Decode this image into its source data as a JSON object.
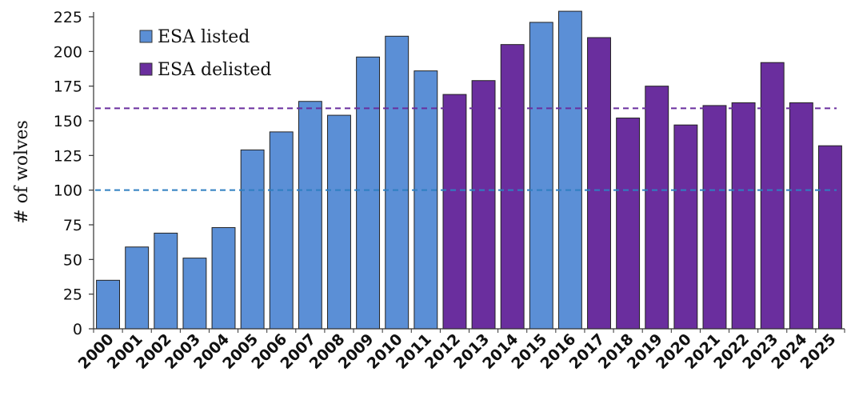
{
  "chart_data": {
    "type": "bar",
    "ylabel": "# of wolves",
    "ylim": [
      0,
      225
    ],
    "yticks": [
      0,
      25,
      50,
      75,
      100,
      125,
      150,
      175,
      200,
      225
    ],
    "categories": [
      "2000",
      "2001",
      "2002",
      "2003",
      "2004",
      "2005",
      "2006",
      "2007",
      "2008",
      "2009",
      "2010",
      "2011",
      "2012",
      "2013",
      "2014",
      "2015",
      "2016",
      "2017",
      "2018",
      "2019",
      "2020",
      "2021",
      "2022",
      "2023",
      "2024",
      "2025"
    ],
    "values": [
      35,
      59,
      69,
      51,
      73,
      129,
      142,
      164,
      154,
      196,
      211,
      186,
      169,
      179,
      205,
      221,
      229,
      210,
      152,
      175,
      147,
      161,
      163,
      192,
      163,
      132
    ],
    "status": [
      "listed",
      "listed",
      "listed",
      "listed",
      "listed",
      "listed",
      "listed",
      "listed",
      "listed",
      "listed",
      "listed",
      "listed",
      "delisted",
      "delisted",
      "delisted",
      "listed",
      "listed",
      "delisted",
      "delisted",
      "delisted",
      "delisted",
      "delisted",
      "delisted",
      "delisted",
      "delisted",
      "delisted"
    ],
    "legend": {
      "placement": "top-left",
      "entries": [
        {
          "key": "listed",
          "label": "ESA listed",
          "color": "#5b8fd6"
        },
        {
          "key": "delisted",
          "label": "ESA delisted",
          "color": "#6a2e9e"
        }
      ]
    },
    "reference_lines": [
      {
        "value": 100,
        "color": "#2f7fc1",
        "style": "dashed"
      },
      {
        "value": 159,
        "color": "#6a2e9e",
        "style": "dashed"
      }
    ],
    "grid": false
  }
}
